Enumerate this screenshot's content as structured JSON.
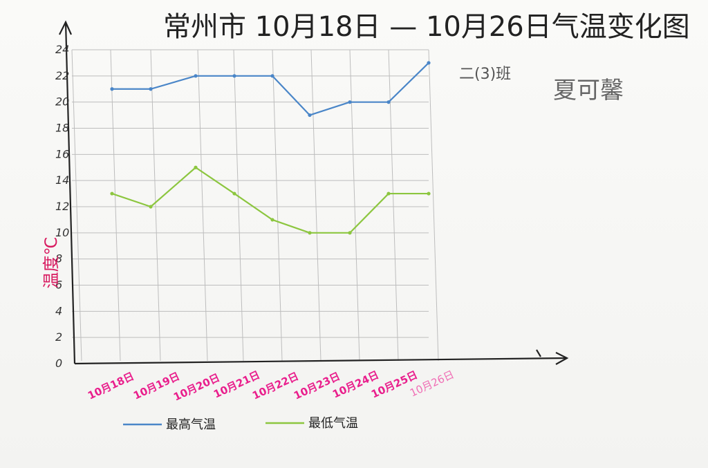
{
  "title": "常州市 10月18日 — 10月26日气温变化图",
  "class_label": "二(3)班",
  "author": "夏可馨",
  "colors": {
    "high": "#4a86c8",
    "low": "#8cc63f",
    "axis": "#222222",
    "ylabel": "#d81b60",
    "xtick": "#e91e8c"
  },
  "chart_data": {
    "type": "line",
    "ylabel": "温度℃",
    "ylim": [
      0,
      24
    ],
    "yticks": [
      "0",
      "2",
      "4",
      "6",
      "8",
      "10",
      "12",
      "14",
      "16",
      "18",
      "20",
      "22",
      "24"
    ],
    "categories": [
      "10月18日",
      "10月19日",
      "10月20日",
      "10月21日",
      "10月22日",
      "10月23日",
      "10月24日",
      "10月25日",
      "10月26日"
    ],
    "grid": true,
    "legend_position": "bottom",
    "series": [
      {
        "name": "最高气温",
        "color": "#4a86c8",
        "values": [
          21,
          21,
          22,
          22,
          22,
          19,
          20,
          20,
          23
        ]
      },
      {
        "name": "最低气温",
        "color": "#8cc63f",
        "values": [
          13,
          12,
          15,
          13,
          11,
          10,
          10,
          13,
          13
        ]
      }
    ]
  }
}
